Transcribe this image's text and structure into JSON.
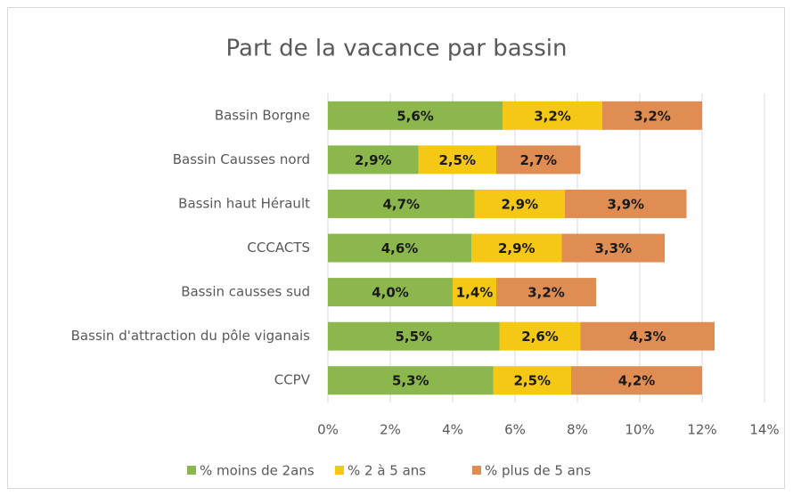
{
  "chart_data": {
    "type": "stacked_barh",
    "title": "Part de la vacance par bassin",
    "categories": [
      "Bassin Borgne",
      "Bassin Causses nord",
      "Bassin haut Hérault",
      "CCCACTS",
      "Bassin causses sud",
      "Bassin d'attraction du pôle viganais",
      "CCPV"
    ],
    "series": [
      {
        "name": "% moins de 2ans",
        "color": "#8cb74c",
        "values": [
          5.6,
          2.9,
          4.7,
          4.6,
          4.0,
          5.5,
          5.3
        ],
        "value_labels": [
          "5,6%",
          "2,9%",
          "4,7%",
          "4,6%",
          "4,0%",
          "5,5%",
          "5,3%"
        ]
      },
      {
        "name": "% 2 à 5 ans",
        "color": "#f4c814",
        "values": [
          3.2,
          2.5,
          2.9,
          2.9,
          1.4,
          2.6,
          2.5
        ],
        "value_labels": [
          "3,2%",
          "2,5%",
          "2,9%",
          "2,9%",
          "1,4%",
          "2,6%",
          "2,5%"
        ]
      },
      {
        "name": "% plus de 5 ans",
        "color": "#e08d54",
        "values": [
          3.2,
          2.7,
          3.9,
          3.3,
          3.2,
          4.3,
          4.2
        ],
        "value_labels": [
          "3,2%",
          "2,7%",
          "3,9%",
          "3,3%",
          "3,2%",
          "4,3%",
          "4,2%"
        ]
      }
    ],
    "xlim": [
      0,
      14
    ],
    "xticks": [
      {
        "value": 0,
        "label": "0%"
      },
      {
        "value": 2,
        "label": "2%"
      },
      {
        "value": 4,
        "label": "4%"
      },
      {
        "value": 6,
        "label": "6%"
      },
      {
        "value": 8,
        "label": "8%"
      },
      {
        "value": 10,
        "label": "10%"
      },
      {
        "value": 12,
        "label": "12%"
      },
      {
        "value": 14,
        "label": "14%"
      }
    ],
    "grid": true,
    "legend": "bottom"
  }
}
